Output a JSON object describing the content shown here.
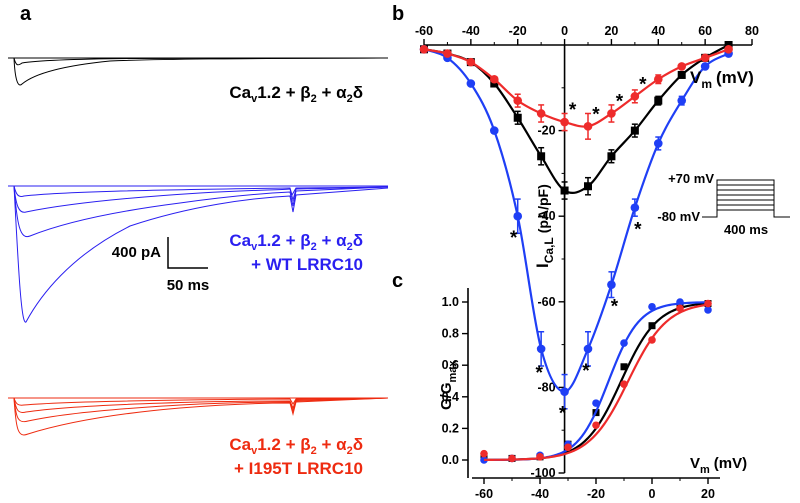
{
  "panels": {
    "a": {
      "label": "a",
      "traces": [
        {
          "name": "black",
          "color": "#000000",
          "line1_main": "Ca",
          "line1_sub": "v",
          "line1_rest": "1.2 + β",
          "line1_sub2": "2",
          "line1_rest2": " + α",
          "line1_sub3": "2",
          "line1_rest3": "δ",
          "line2": ""
        },
        {
          "name": "blue",
          "color": "#2a1ff0",
          "line1_main": "Ca",
          "line1_sub": "v",
          "line1_rest": "1.2 + β",
          "line1_sub2": "2",
          "line1_rest2": " + α",
          "line1_sub3": "2",
          "line1_rest3": "δ",
          "line2": "+ WT LRRC10"
        },
        {
          "name": "red",
          "color": "#ee2b10",
          "line1_main": "Ca",
          "line1_sub": "v",
          "line1_rest": "1.2 + β",
          "line1_sub2": "2",
          "line1_rest2": " + α",
          "line1_sub3": "2",
          "line1_rest3": "δ",
          "line2": "+ I195T LRRC10"
        }
      ],
      "scalebar": {
        "current": "400 pA",
        "time": "50 ms"
      }
    },
    "b": {
      "label": "b",
      "inset": {
        "top": "+70 mV",
        "bottom": "-80 mV",
        "duration": "400 ms"
      }
    },
    "c": {
      "label": "c"
    }
  },
  "chart_data": [
    {
      "id": "b",
      "type": "line",
      "title": "",
      "xlabel_main": "V",
      "xlabel_sub": "m",
      "xlabel_unit": "(mV)",
      "ylabel_main": "I",
      "ylabel_sub": "Ca,L",
      "ylabel_unit": "(pA/pF)",
      "xlim": [
        -60,
        80
      ],
      "ylim": [
        -100,
        0
      ],
      "xticks": [
        -60,
        -40,
        -20,
        0,
        20,
        40,
        60,
        80
      ],
      "yticks": [
        -20,
        -40,
        -60,
        -80,
        -100
      ],
      "series": [
        {
          "name": "Cav1.2+β2+α2δ",
          "color": "#000000",
          "x": [
            -60,
            -50,
            -40,
            -30,
            -20,
            -10,
            0,
            10,
            20,
            30,
            40,
            50,
            60,
            70
          ],
          "y": [
            -1,
            -2,
            -4,
            -9,
            -17,
            -26,
            -34,
            -33,
            -26,
            -20,
            -13,
            -7,
            -3,
            0
          ],
          "err": [
            0,
            0,
            0,
            0,
            1.5,
            2,
            2,
            2,
            1.5,
            1.5,
            1,
            0,
            0,
            0
          ]
        },
        {
          "name": "+ WT LRRC10",
          "color": "#1f3ff5",
          "x": [
            -60,
            -50,
            -40,
            -30,
            -20,
            -10,
            0,
            10,
            20,
            30,
            40,
            50,
            60,
            70
          ],
          "y": [
            -1,
            -3,
            -9,
            -20,
            -40,
            -71,
            -81,
            -71,
            -56,
            -38,
            -23,
            -13,
            -5,
            -2
          ],
          "err": [
            0,
            0,
            0,
            0,
            4,
            4,
            4,
            4,
            3,
            2,
            1.5,
            1,
            0,
            0
          ]
        },
        {
          "name": "+ I195T LRRC10",
          "color": "#ee2b2b",
          "x": [
            -60,
            -50,
            -40,
            -30,
            -20,
            -10,
            0,
            10,
            20,
            30,
            40,
            50,
            60,
            70
          ],
          "y": [
            -1,
            -2,
            -4,
            -8,
            -13,
            -16,
            -18,
            -19,
            -16,
            -12,
            -8,
            -5,
            -3,
            -1
          ],
          "err": [
            0,
            0,
            0,
            0,
            1.5,
            2,
            2,
            3,
            2,
            1.5,
            1,
            0,
            0,
            0
          ]
        }
      ],
      "significance": [
        {
          "x": 0,
          "series": "red",
          "mark": "*"
        },
        {
          "x": 10,
          "series": "red",
          "mark": "*"
        },
        {
          "x": 20,
          "series": "red",
          "mark": "*"
        },
        {
          "x": 30,
          "series": "red",
          "mark": "*"
        },
        {
          "x": -20,
          "series": "blue",
          "mark": "*"
        },
        {
          "x": -10,
          "series": "blue",
          "mark": "*"
        },
        {
          "x": 0,
          "series": "blue",
          "mark": "*"
        },
        {
          "x": 10,
          "series": "blue",
          "mark": "*"
        },
        {
          "x": 20,
          "series": "blue",
          "mark": "*"
        },
        {
          "x": 30,
          "series": "blue",
          "mark": "*"
        }
      ]
    },
    {
      "id": "c",
      "type": "line",
      "title": "",
      "xlabel_main": "V",
      "xlabel_sub": "m",
      "xlabel_unit": "(mV)",
      "ylabel_main": "G/G",
      "ylabel_sub": "max",
      "xlim": [
        -60,
        20
      ],
      "ylim": [
        0,
        1.0
      ],
      "xticks": [
        -60,
        -40,
        -20,
        0,
        20
      ],
      "yticks": [
        0.0,
        0.2,
        0.4,
        0.6,
        0.8,
        1.0
      ],
      "ytick_labels": [
        "0.0",
        "0.2",
        "0.4",
        "0.6",
        "0.8",
        "1.0"
      ],
      "series": [
        {
          "name": "Cav1.2+β2+α2δ",
          "color": "#000000",
          "x": [
            -60,
            -50,
            -40,
            -30,
            -20,
            -10,
            0,
            10,
            20
          ],
          "y": [
            0.02,
            0.01,
            0.02,
            0.1,
            0.3,
            0.59,
            0.85,
            0.97,
            0.99
          ],
          "vhalf": -11,
          "k": 6.5
        },
        {
          "name": "+ WT LRRC10",
          "color": "#1f3ff5",
          "x": [
            -60,
            -50,
            -40,
            -30,
            -20,
            -10,
            0,
            10,
            20
          ],
          "y": [
            0.0,
            0.01,
            0.03,
            0.1,
            0.36,
            0.74,
            0.97,
            1.0,
            0.95
          ],
          "vhalf": -15.5,
          "k": 5.5
        },
        {
          "name": "+ I195T LRRC10",
          "color": "#ee2b2b",
          "x": [
            -60,
            -50,
            -40,
            -30,
            -20,
            -10,
            0,
            10,
            20
          ],
          "y": [
            0.04,
            0.01,
            0.02,
            0.08,
            0.22,
            0.48,
            0.76,
            0.96,
            0.99
          ],
          "vhalf": -8.5,
          "k": 7.0
        }
      ]
    }
  ]
}
